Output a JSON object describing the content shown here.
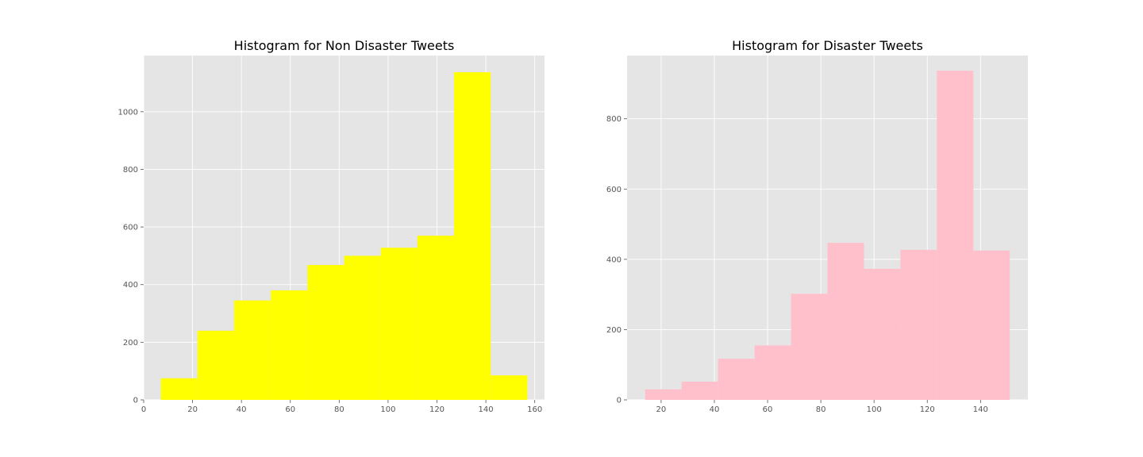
{
  "chart_data": [
    {
      "type": "bar",
      "title": "Histogram for Non Disaster Tweets",
      "xlabel": "",
      "ylabel": "",
      "color": "#ffff00",
      "background": "#e5e5e5",
      "grid": true,
      "xlim": [
        0,
        164
      ],
      "ylim": [
        0,
        1195
      ],
      "xticks": [
        0,
        20,
        40,
        60,
        80,
        100,
        120,
        140,
        160
      ],
      "yticks": [
        0,
        200,
        400,
        600,
        800,
        1000
      ],
      "bins": [
        {
          "start": 7,
          "end": 22,
          "count": 75
        },
        {
          "start": 22,
          "end": 37,
          "count": 240
        },
        {
          "start": 37,
          "end": 52,
          "count": 345
        },
        {
          "start": 52,
          "end": 67,
          "count": 380
        },
        {
          "start": 67,
          "end": 82,
          "count": 468
        },
        {
          "start": 82,
          "end": 97,
          "count": 500
        },
        {
          "start": 97,
          "end": 112,
          "count": 528
        },
        {
          "start": 112,
          "end": 127,
          "count": 570
        },
        {
          "start": 127,
          "end": 142,
          "count": 1137
        },
        {
          "start": 142,
          "end": 157,
          "count": 85
        }
      ]
    },
    {
      "type": "bar",
      "title": "Histogram for Disaster Tweets",
      "xlabel": "",
      "ylabel": "",
      "color": "#ffc0cb",
      "background": "#e5e5e5",
      "grid": true,
      "xlim": [
        7.2,
        157.8
      ],
      "ylim": [
        0,
        980
      ],
      "xticks": [
        20,
        40,
        60,
        80,
        100,
        120,
        140
      ],
      "yticks": [
        0,
        200,
        400,
        600,
        800
      ],
      "bins": [
        {
          "start": 14,
          "end": 27.7,
          "count": 30
        },
        {
          "start": 27.7,
          "end": 41.4,
          "count": 52
        },
        {
          "start": 41.4,
          "end": 55.1,
          "count": 117
        },
        {
          "start": 55.1,
          "end": 68.8,
          "count": 155
        },
        {
          "start": 68.8,
          "end": 82.5,
          "count": 302
        },
        {
          "start": 82.5,
          "end": 96.2,
          "count": 447
        },
        {
          "start": 96.2,
          "end": 109.9,
          "count": 373
        },
        {
          "start": 109.9,
          "end": 123.6,
          "count": 427
        },
        {
          "start": 123.6,
          "end": 137.3,
          "count": 937
        },
        {
          "start": 137.3,
          "end": 151,
          "count": 425
        }
      ]
    }
  ]
}
